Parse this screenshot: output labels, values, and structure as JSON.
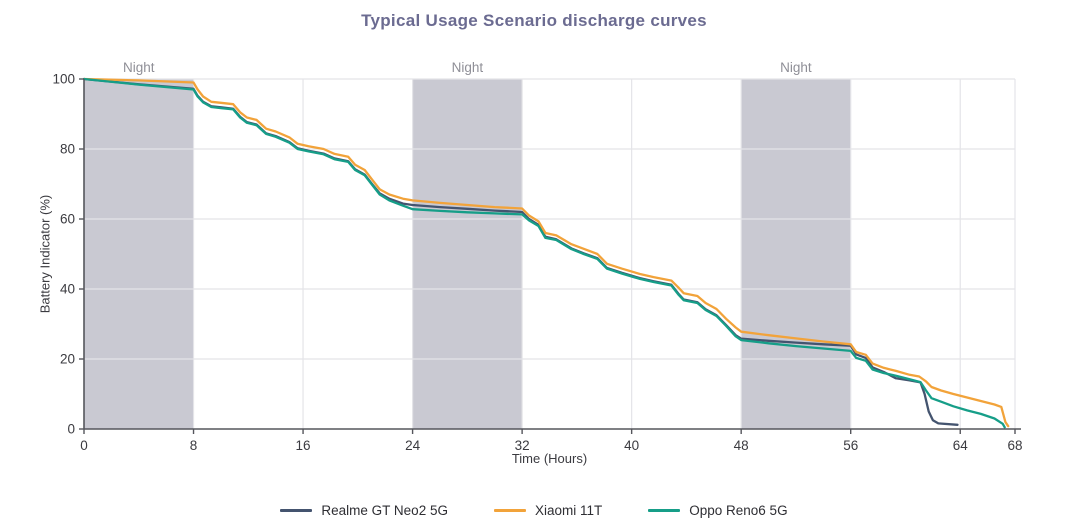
{
  "title": "Typical Usage Scenario discharge curves",
  "chart_data": {
    "type": "line",
    "title": "Typical Usage Scenario discharge curves",
    "xlabel": "Time (Hours)",
    "ylabel": "Battery Indicator (%)",
    "xlim": [
      0,
      68
    ],
    "ylim": [
      0,
      100
    ],
    "x_ticks": [
      0,
      8,
      16,
      24,
      32,
      40,
      48,
      56,
      64,
      68
    ],
    "y_ticks": [
      0,
      20,
      40,
      60,
      80,
      100
    ],
    "grid": true,
    "legend_position": "bottom",
    "night_bands": {
      "label": "Night",
      "ranges": [
        [
          0,
          8
        ],
        [
          24,
          32
        ],
        [
          48,
          56
        ]
      ],
      "fill_color": "#c9c9d2",
      "label_color": "#8f8f97"
    },
    "series": [
      {
        "name": "Realme GT Neo2 5G",
        "color": "#44546f",
        "points": [
          [
            0,
            100
          ],
          [
            4,
            98.5
          ],
          [
            8,
            97.2
          ],
          [
            8.3,
            95.2
          ],
          [
            8.7,
            93.5
          ],
          [
            9.3,
            92.2
          ],
          [
            10,
            91.9
          ],
          [
            10.9,
            91.5
          ],
          [
            11.4,
            89.2
          ],
          [
            11.9,
            87.7
          ],
          [
            12.6,
            87
          ],
          [
            13.3,
            84.5
          ],
          [
            14,
            83.7
          ],
          [
            15,
            82
          ],
          [
            15.6,
            80.2
          ],
          [
            16.4,
            79.5
          ],
          [
            17.5,
            78.7
          ],
          [
            18.3,
            77.3
          ],
          [
            19.3,
            76.5
          ],
          [
            19.8,
            74.2
          ],
          [
            20.5,
            72.7
          ],
          [
            21,
            70.2
          ],
          [
            21.6,
            67.3
          ],
          [
            22.3,
            65.8
          ],
          [
            23.3,
            64.4
          ],
          [
            24,
            64
          ],
          [
            26,
            63.4
          ],
          [
            28,
            62.9
          ],
          [
            30,
            62.4
          ],
          [
            32,
            62
          ],
          [
            32.5,
            60
          ],
          [
            33.2,
            58.3
          ],
          [
            33.7,
            54.9
          ],
          [
            34.5,
            54.2
          ],
          [
            35.6,
            51.6
          ],
          [
            36.5,
            50.2
          ],
          [
            37.5,
            48.8
          ],
          [
            38.2,
            46
          ],
          [
            39.3,
            44.6
          ],
          [
            40.6,
            43.1
          ],
          [
            41.6,
            42.2
          ],
          [
            42.9,
            41.2
          ],
          [
            43.4,
            38.7
          ],
          [
            43.8,
            37
          ],
          [
            44.8,
            36.2
          ],
          [
            45.4,
            34.2
          ],
          [
            46.2,
            32.5
          ],
          [
            46.9,
            29.7
          ],
          [
            47.6,
            26.8
          ],
          [
            48,
            25.8
          ],
          [
            50,
            25.2
          ],
          [
            52,
            24.7
          ],
          [
            54,
            24.2
          ],
          [
            56,
            23.8
          ],
          [
            56.4,
            21.3
          ],
          [
            57.1,
            20.3
          ],
          [
            57.6,
            17.6
          ],
          [
            58.4,
            16.3
          ],
          [
            59.3,
            14.5
          ],
          [
            60.3,
            13.9
          ],
          [
            61.1,
            13.3
          ],
          [
            61.4,
            10
          ],
          [
            61.7,
            5
          ],
          [
            62,
            2.5
          ],
          [
            62.4,
            1.6
          ],
          [
            63.8,
            1.2
          ]
        ]
      },
      {
        "name": "Xiaomi 11T",
        "color": "#f2a33a",
        "points": [
          [
            0,
            100
          ],
          [
            4,
            99.6
          ],
          [
            8,
            99
          ],
          [
            8.3,
            97
          ],
          [
            8.7,
            95
          ],
          [
            9.3,
            93.5
          ],
          [
            10,
            93.2
          ],
          [
            10.9,
            92.8
          ],
          [
            11.4,
            90.5
          ],
          [
            11.9,
            89
          ],
          [
            12.6,
            88.3
          ],
          [
            13.3,
            85.8
          ],
          [
            14,
            85
          ],
          [
            15,
            83.3
          ],
          [
            15.6,
            81.5
          ],
          [
            16.4,
            80.8
          ],
          [
            17.5,
            80
          ],
          [
            18.3,
            78.6
          ],
          [
            19.3,
            77.8
          ],
          [
            19.8,
            75.5
          ],
          [
            20.5,
            74
          ],
          [
            21,
            71.5
          ],
          [
            21.6,
            68.5
          ],
          [
            22.3,
            67
          ],
          [
            23.3,
            65.8
          ],
          [
            24,
            65.3
          ],
          [
            26,
            64.6
          ],
          [
            28,
            64
          ],
          [
            30,
            63.4
          ],
          [
            32,
            63
          ],
          [
            32.5,
            61
          ],
          [
            33.2,
            59.3
          ],
          [
            33.7,
            56
          ],
          [
            34.5,
            55.3
          ],
          [
            35.6,
            52.8
          ],
          [
            36.5,
            51.5
          ],
          [
            37.5,
            50
          ],
          [
            38.2,
            47.2
          ],
          [
            39.3,
            45.8
          ],
          [
            40.6,
            44.3
          ],
          [
            41.6,
            43.4
          ],
          [
            42.9,
            42.4
          ],
          [
            43.4,
            40.5
          ],
          [
            43.8,
            38.8
          ],
          [
            44.8,
            38
          ],
          [
            45.4,
            36
          ],
          [
            46.2,
            34.3
          ],
          [
            46.9,
            31.5
          ],
          [
            47.6,
            29
          ],
          [
            48,
            27.8
          ],
          [
            50,
            26.8
          ],
          [
            52,
            25.9
          ],
          [
            54,
            25
          ],
          [
            56,
            24.2
          ],
          [
            56.4,
            22
          ],
          [
            57.1,
            21.2
          ],
          [
            57.6,
            18.7
          ],
          [
            58.4,
            17.5
          ],
          [
            59.3,
            16.6
          ],
          [
            60.3,
            15.5
          ],
          [
            61,
            15
          ],
          [
            61.5,
            13.6
          ],
          [
            61.9,
            12
          ],
          [
            62.6,
            11
          ],
          [
            63.5,
            10
          ],
          [
            64.5,
            9
          ],
          [
            65.5,
            8
          ],
          [
            66.5,
            7
          ],
          [
            67,
            6.3
          ],
          [
            67.3,
            2
          ],
          [
            67.5,
            0.8
          ]
        ]
      },
      {
        "name": "Oppo Reno6 5G",
        "color": "#169e88",
        "points": [
          [
            0,
            100
          ],
          [
            4,
            98.4
          ],
          [
            8,
            97
          ],
          [
            8.3,
            95
          ],
          [
            8.7,
            93.3
          ],
          [
            9.3,
            92
          ],
          [
            10,
            91.7
          ],
          [
            10.9,
            91.3
          ],
          [
            11.4,
            89
          ],
          [
            11.9,
            87.5
          ],
          [
            12.6,
            86.8
          ],
          [
            13.3,
            84.3
          ],
          [
            14,
            83.5
          ],
          [
            15,
            81.8
          ],
          [
            15.6,
            80
          ],
          [
            16.4,
            79.3
          ],
          [
            17.5,
            78.5
          ],
          [
            18.3,
            77.1
          ],
          [
            19.3,
            76.3
          ],
          [
            19.8,
            74
          ],
          [
            20.5,
            72.5
          ],
          [
            21,
            70
          ],
          [
            21.6,
            67
          ],
          [
            22.3,
            65.3
          ],
          [
            23.3,
            63.8
          ],
          [
            24,
            62.8
          ],
          [
            26,
            62.3
          ],
          [
            28,
            61.9
          ],
          [
            30,
            61.6
          ],
          [
            32,
            61.3
          ],
          [
            32.5,
            59.6
          ],
          [
            33.2,
            58
          ],
          [
            33.7,
            54.6
          ],
          [
            34.5,
            54
          ],
          [
            35.6,
            51.4
          ],
          [
            36.5,
            50
          ],
          [
            37.5,
            48.6
          ],
          [
            38.2,
            45.8
          ],
          [
            39.3,
            44.4
          ],
          [
            40.6,
            42.9
          ],
          [
            41.6,
            42
          ],
          [
            42.9,
            41
          ],
          [
            43.4,
            38.5
          ],
          [
            43.8,
            36.8
          ],
          [
            44.8,
            36
          ],
          [
            45.4,
            34
          ],
          [
            46.2,
            32.3
          ],
          [
            46.9,
            29.5
          ],
          [
            47.6,
            26.5
          ],
          [
            48,
            25.4
          ],
          [
            50,
            24.5
          ],
          [
            52,
            23.7
          ],
          [
            54,
            23
          ],
          [
            56,
            22.3
          ],
          [
            56.4,
            20.3
          ],
          [
            57.1,
            19.5
          ],
          [
            57.6,
            17
          ],
          [
            58.4,
            16
          ],
          [
            59.3,
            15.2
          ],
          [
            60.3,
            14.2
          ],
          [
            61.1,
            13.4
          ],
          [
            61.5,
            11
          ],
          [
            61.9,
            8.8
          ],
          [
            62.6,
            7.8
          ],
          [
            63.5,
            6.5
          ],
          [
            64.5,
            5.3
          ],
          [
            65.5,
            4.3
          ],
          [
            66.5,
            3
          ],
          [
            67.1,
            1.5
          ],
          [
            67.25,
            0.5
          ]
        ]
      }
    ],
    "style": {
      "grid_color": "#e4e4e8",
      "spine_color": "#55565c",
      "tick_text_color": "#3b3b40",
      "title_color": "#6b6b91",
      "background": "#ffffff"
    }
  }
}
